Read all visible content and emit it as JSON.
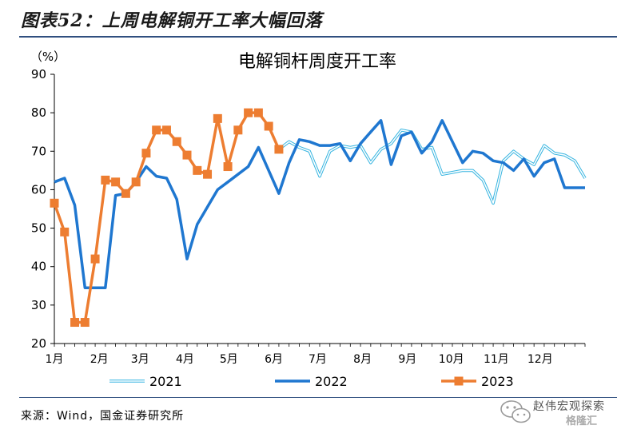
{
  "figure": {
    "title": "图表52：上周电解铜开工率大幅回落",
    "source": "来源：Wind，国金证券研究所",
    "watermark": "赵伟宏观探索",
    "watermark_sub": "格隆汇"
  },
  "chart_data": {
    "type": "line",
    "title": "电解铜杆周度开工率",
    "ylabel": "（%）",
    "ylim": [
      20,
      90
    ],
    "yticks": [
      20,
      30,
      40,
      50,
      60,
      70,
      80,
      90
    ],
    "xlim": [
      1,
      53
    ],
    "xticks": [
      {
        "label": "1月",
        "week": 1
      },
      {
        "label": "2月",
        "week": 5.4
      },
      {
        "label": "3月",
        "week": 9.4
      },
      {
        "label": "4月",
        "week": 13.8
      },
      {
        "label": "5月",
        "week": 18.1
      },
      {
        "label": "6月",
        "week": 22.5
      },
      {
        "label": "7月",
        "week": 26.8
      },
      {
        "label": "8月",
        "week": 31.2
      },
      {
        "label": "9月",
        "week": 35.6
      },
      {
        "label": "10月",
        "week": 39.9
      },
      {
        "label": "11月",
        "week": 44.3
      },
      {
        "label": "12月",
        "week": 48.6
      }
    ],
    "grid": false,
    "legend_position": "bottom",
    "series": [
      {
        "name": "2021",
        "color": "#35b4e0",
        "style": "double",
        "x": [
          23,
          24,
          25,
          26,
          27,
          28,
          29,
          30,
          31,
          32,
          33,
          34,
          35,
          36,
          37,
          38,
          39,
          40,
          41,
          42,
          43,
          44,
          45,
          46,
          47,
          48,
          49,
          50,
          51,
          52,
          53
        ],
        "values": [
          70.5,
          72.5,
          71,
          70,
          63.5,
          70,
          71.5,
          71,
          71.5,
          67,
          70.5,
          72,
          75.5,
          75,
          70.5,
          71,
          64,
          64.5,
          65,
          65,
          62.5,
          56.5,
          67.5,
          70,
          68,
          66.5,
          71.5,
          69.5,
          69,
          67.5,
          63
        ]
      },
      {
        "name": "2022",
        "color": "#1f77d0",
        "style": "solid",
        "x": [
          1,
          2,
          3,
          4,
          5,
          6,
          7,
          8,
          9,
          10,
          11,
          12,
          13,
          14,
          15,
          16,
          17,
          18,
          19,
          20,
          21,
          22,
          23,
          24,
          25,
          26,
          27,
          28,
          29,
          30,
          31,
          32,
          33,
          34,
          35,
          36,
          37,
          38,
          39,
          40,
          41,
          42,
          43,
          44,
          45,
          46,
          47,
          48,
          49,
          50,
          51,
          52,
          53
        ],
        "values": [
          62,
          63,
          56,
          34.5,
          34.5,
          34.5,
          58.5,
          59,
          62,
          66,
          63.5,
          63,
          57.5,
          42,
          51,
          55.5,
          60,
          62,
          64,
          66,
          71,
          65,
          59,
          67,
          73,
          72.5,
          71.5,
          71.5,
          72,
          67.5,
          72,
          75,
          78,
          66.5,
          74,
          75,
          69.5,
          72.5,
          78,
          72.5,
          67,
          70,
          69.5,
          67.5,
          67,
          65,
          68,
          63.5,
          67,
          68,
          60.5,
          60.5,
          60.5
        ]
      },
      {
        "name": "2023",
        "color": "#ed7d31",
        "style": "marker",
        "x": [
          1,
          2,
          3,
          4,
          5,
          6,
          7,
          8,
          9,
          10,
          11,
          12,
          13,
          14,
          15,
          16,
          17,
          18,
          19,
          20,
          21,
          22,
          23,
          24
        ],
        "values": [
          56.5,
          49,
          25.5,
          25.5,
          42,
          62.5,
          62,
          59,
          62,
          69.5,
          75.5,
          75.5,
          72.5,
          69,
          65,
          64,
          78.5,
          66,
          75.5,
          80,
          80,
          76.5,
          70.5,
          null
        ]
      }
    ]
  }
}
